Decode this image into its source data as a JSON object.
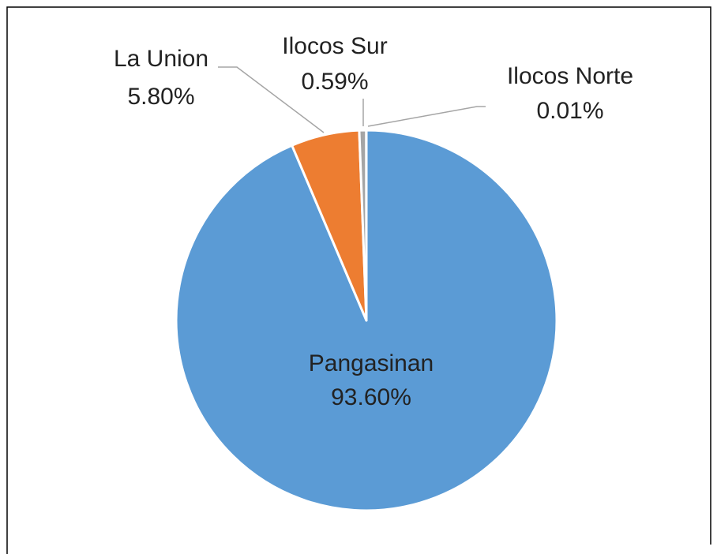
{
  "chart_data": {
    "type": "pie",
    "categories": [
      "Pangasinan",
      "La Union",
      "Ilocos Sur",
      "Ilocos Norte"
    ],
    "values": [
      93.6,
      5.8,
      0.59,
      0.01
    ],
    "value_labels": [
      "93.60%",
      "5.80%",
      "0.59%",
      "0.01%"
    ],
    "colors": [
      "#5b9bd5",
      "#ed7d31",
      "#a5a5a5",
      "#ffc000"
    ]
  }
}
